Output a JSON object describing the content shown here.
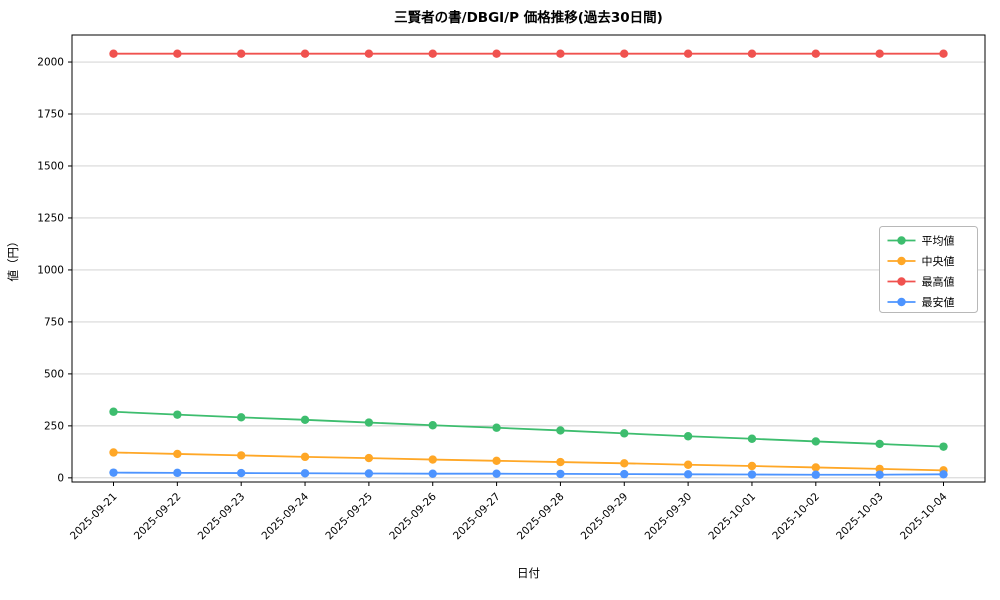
{
  "figure": {
    "background": "#ffffff"
  },
  "chart_data": {
    "type": "line",
    "title": "三賢者の書/DBGI/P 価格推移(過去30日間)",
    "xlabel": "日付",
    "ylabel": "値（円）",
    "grid": true,
    "legend_position": "right",
    "ylim": [
      -20,
      2130
    ],
    "yticks": [
      0,
      250,
      500,
      750,
      1000,
      1250,
      1500,
      1750,
      2000
    ],
    "x": [
      "2025-09-21",
      "2025-09-22",
      "2025-09-23",
      "2025-09-24",
      "2025-09-25",
      "2025-09-26",
      "2025-09-27",
      "2025-09-28",
      "2025-09-29",
      "2025-09-30",
      "2025-10-01",
      "2025-10-02",
      "2025-10-03",
      "2025-10-04"
    ],
    "series": [
      {
        "key": "average",
        "name": "平均値",
        "color": "#3dbd6e",
        "values": [
          318,
          304,
          291,
          279,
          266,
          253,
          241,
          228,
          214,
          200,
          188,
          175,
          163,
          150
        ]
      },
      {
        "key": "median",
        "name": "中央値",
        "color": "#ffa726",
        "values": [
          122,
          115,
          108,
          101,
          95,
          88,
          82,
          76,
          70,
          63,
          57,
          50,
          43,
          36
        ]
      },
      {
        "key": "max",
        "name": "最高値",
        "color": "#f0524f",
        "values": [
          2040,
          2040,
          2040,
          2040,
          2040,
          2040,
          2040,
          2040,
          2040,
          2040,
          2040,
          2040,
          2040,
          2040
        ]
      },
      {
        "key": "min",
        "name": "最安値",
        "color": "#4d94ff",
        "values": [
          25,
          24,
          23,
          22,
          21,
          20,
          20,
          19,
          18,
          17,
          16,
          15,
          15,
          17
        ]
      }
    ],
    "colors": {
      "grid": "#cccccc",
      "axis": "#000000",
      "legend_border": "#b8b8b8",
      "legend_background": "#ffffff"
    }
  }
}
